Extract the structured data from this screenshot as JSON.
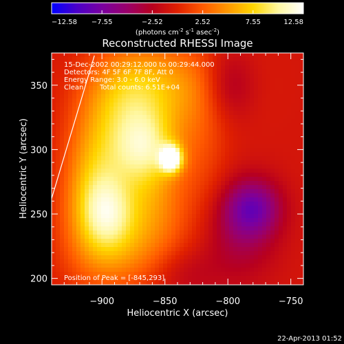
{
  "chart_data": {
    "type": "heatmap",
    "title": "Reconstructed RHESSI Image",
    "xlabel": "Heliocentric X (arcsec)",
    "ylabel": "Heliocentric Y (arcsec)",
    "xlim": [
      -940,
      -740
    ],
    "ylim": [
      195,
      375
    ],
    "x_ticks": [
      -900,
      -850,
      -800,
      -750
    ],
    "x_tick_labels": [
      "−900",
      "−850",
      "−800",
      "−750"
    ],
    "y_ticks": [
      200,
      250,
      300,
      350
    ],
    "y_tick_labels": [
      "200",
      "250",
      "300",
      "350"
    ],
    "colorbar": {
      "range": [
        -12.58,
        12.58
      ],
      "ticks": [
        -12.58,
        -7.55,
        -2.52,
        2.52,
        7.55,
        12.58
      ],
      "tick_labels": [
        "−12.58",
        "−7.55",
        "−2.52",
        "2.52",
        "7.55",
        "12.58"
      ],
      "unit_text": "(photons cm",
      "unit_sup1": "-2",
      "unit_mid": " s",
      "unit_sup2": "-1",
      "unit_end": " asec",
      "unit_sup3": "-2",
      "unit_close": ")",
      "colors": [
        "#0000ff",
        "#4b00c8",
        "#7a00a0",
        "#9a006a",
        "#b8001e",
        "#e02000",
        "#ff5a00",
        "#ff9800",
        "#ffd600",
        "#fff7a0",
        "#ffffff"
      ]
    },
    "annotations": {
      "time": "15-Dec-2002 00:29:12.000 to 00:29:44.000",
      "detectors": "Detectors: 4F 5F 6F 7F 8F, Att 0",
      "energy": "Energy Range: 3.0 - 6.0 keV",
      "method": "Clean",
      "counts": "Total counts: 6.51E+04",
      "peak": "Position of Peak = [-845,293]"
    },
    "peak": {
      "x": -845,
      "y": 293
    },
    "blobs": [
      {
        "x": -845,
        "y": 293,
        "sx": 6,
        "sy": 7,
        "v": 12.2
      },
      {
        "x": -865,
        "y": 300,
        "sx": 18,
        "sy": 20,
        "v": 7.5
      },
      {
        "x": -880,
        "y": 335,
        "sx": 25,
        "sy": 30,
        "v": 6.0
      },
      {
        "x": -905,
        "y": 275,
        "sx": 18,
        "sy": 35,
        "v": 6.5
      },
      {
        "x": -895,
        "y": 250,
        "sx": 15,
        "sy": 20,
        "v": 4.8
      },
      {
        "x": -860,
        "y": 255,
        "sx": 20,
        "sy": 25,
        "v": 4.5
      },
      {
        "x": -845,
        "y": 350,
        "sx": 35,
        "sy": 25,
        "v": 4.5
      },
      {
        "x": -900,
        "y": 230,
        "sx": 25,
        "sy": 30,
        "v": 3.0
      },
      {
        "x": -870,
        "y": 215,
        "sx": 30,
        "sy": 20,
        "v": 2.2
      },
      {
        "x": -820,
        "y": 300,
        "sx": 15,
        "sy": 40,
        "v": 2.0
      },
      {
        "x": -780,
        "y": 255,
        "sx": 15,
        "sy": 15,
        "v": -6.0
      },
      {
        "x": -790,
        "y": 235,
        "sx": 20,
        "sy": 25,
        "v": -3.0
      },
      {
        "x": -800,
        "y": 350,
        "sx": 15,
        "sy": 20,
        "v": -3.5
      },
      {
        "x": -835,
        "y": 205,
        "sx": 20,
        "sy": 15,
        "v": -2.0
      }
    ],
    "limb_line": [
      [
        -940,
        262
      ],
      [
        -906,
        373
      ]
    ]
  },
  "footer": {
    "date": "22-Apr-2013 01:52"
  }
}
